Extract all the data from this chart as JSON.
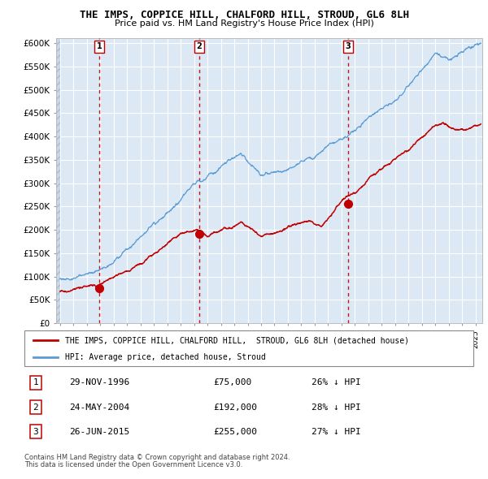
{
  "title": "THE IMPS, COPPICE HILL, CHALFORD HILL, STROUD, GL6 8LH",
  "subtitle": "Price paid vs. HM Land Registry's House Price Index (HPI)",
  "ylim": [
    0,
    610000
  ],
  "yticks": [
    0,
    50000,
    100000,
    150000,
    200000,
    250000,
    300000,
    350000,
    400000,
    450000,
    500000,
    550000,
    600000
  ],
  "ytick_labels": [
    "£0",
    "£50K",
    "£100K",
    "£150K",
    "£200K",
    "£250K",
    "£300K",
    "£350K",
    "£400K",
    "£450K",
    "£500K",
    "£550K",
    "£600K"
  ],
  "sale1_date": 1996.91,
  "sale1_price": 75000,
  "sale1_label": "1",
  "sale1_text": "29-NOV-1996",
  "sale1_amount": "£75,000",
  "sale1_pct": "26% ↓ HPI",
  "sale2_date": 2004.39,
  "sale2_price": 192000,
  "sale2_label": "2",
  "sale2_text": "24-MAY-2004",
  "sale2_amount": "£192,000",
  "sale2_pct": "28% ↓ HPI",
  "sale3_date": 2015.48,
  "sale3_price": 255000,
  "sale3_label": "3",
  "sale3_text": "26-JUN-2015",
  "sale3_amount": "£255,000",
  "sale3_pct": "27% ↓ HPI",
  "hpi_color": "#5b9bd5",
  "price_color": "#c00000",
  "marker_color": "#c00000",
  "vline_color": "#c00000",
  "plot_bg": "#dce9f5",
  "legend_label1": "THE IMPS, COPPICE HILL, CHALFORD HILL,  STROUD, GL6 8LH (detached house)",
  "legend_label2": "HPI: Average price, detached house, Stroud",
  "footnote1": "Contains HM Land Registry data © Crown copyright and database right 2024.",
  "footnote2": "This data is licensed under the Open Government Licence v3.0.",
  "xmin": 1993.7,
  "xmax": 2025.5
}
